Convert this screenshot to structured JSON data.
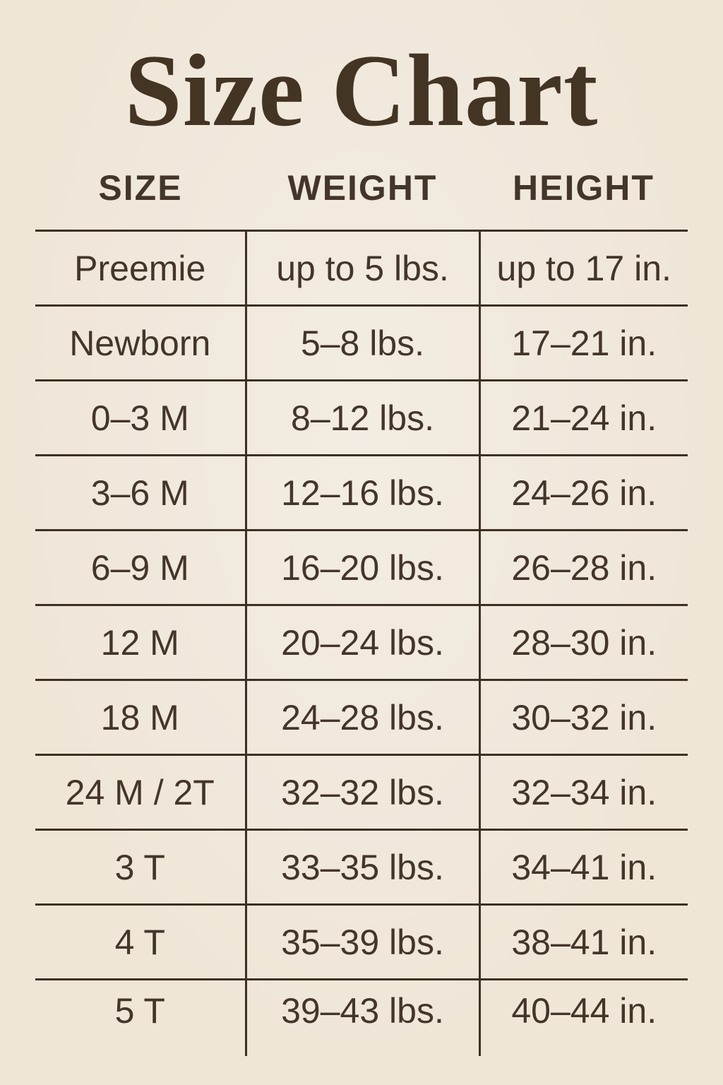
{
  "title": "Size Chart",
  "colors": {
    "background": "#efe6d8",
    "text": "#44352a",
    "title": "#443423",
    "line": "#3d3022"
  },
  "chart_data": {
    "type": "table",
    "title": "Size Chart",
    "columns": [
      "SIZE",
      "WEIGHT",
      "HEIGHT"
    ],
    "rows": [
      {
        "size": "Preemie",
        "weight": "up to 5 lbs.",
        "height": "up to 17 in."
      },
      {
        "size": "Newborn",
        "weight": "5–8 lbs.",
        "height": "17–21 in."
      },
      {
        "size": "0–3 M",
        "weight": "8–12 lbs.",
        "height": "21–24 in."
      },
      {
        "size": "3–6 M",
        "weight": "12–16 lbs.",
        "height": "24–26 in."
      },
      {
        "size": "6–9 M",
        "weight": "16–20 lbs.",
        "height": "26–28 in."
      },
      {
        "size": "12 M",
        "weight": "20–24 lbs.",
        "height": "28–30 in."
      },
      {
        "size": "18 M",
        "weight": "24–28 lbs.",
        "height": "30–32 in."
      },
      {
        "size": "24 M / 2T",
        "weight": "32–32 lbs.",
        "height": "32–34 in."
      },
      {
        "size": "3 T",
        "weight": "33–35 lbs.",
        "height": "34–41 in."
      },
      {
        "size": "4 T",
        "weight": "35–39 lbs.",
        "height": "38–41 in."
      },
      {
        "size": "5 T",
        "weight": "39–43 lbs.",
        "height": "40–44 in."
      }
    ]
  }
}
